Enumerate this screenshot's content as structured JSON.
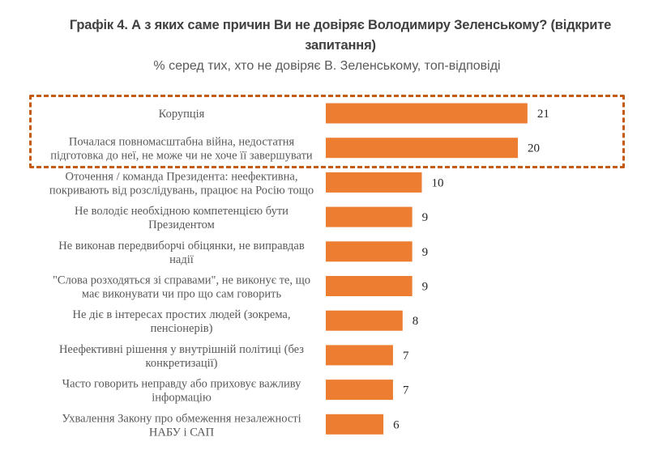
{
  "chart_data": {
    "type": "bar",
    "orientation": "horizontal",
    "title": "Графік 4. А з яких саме причин Ви не довіряє Володимиру Зеленському? (відкрите запитання)",
    "subtitle": "% серед тих, хто не довіряє В. Зеленському, топ-відповіді",
    "categories": [
      [
        "Корупція"
      ],
      [
        "Почалася повномасштабна війна, недостатня",
        "підготовка до неї, не може чи не хоче її завершувати"
      ],
      [
        "Оточення / команда Президента: неефективна,",
        "покривають від розслідувань, працює на Росію тощо"
      ],
      [
        "Не володіє необхідною компетенцією бути",
        "Президентом"
      ],
      [
        "Не виконав передвиборчі обіцянки, не виправдав",
        "надії"
      ],
      [
        "\"Слова розходяться зі справами\", не виконує те, що",
        "має виконувати чи про що сам говорить"
      ],
      [
        "Не діє в інтересах простих людей (зокрема,",
        "пенсіонерів)"
      ],
      [
        "Неефективні рішення у внутрішній політиці (без",
        "конкретизації)"
      ],
      [
        "Часто говорить неправду або приховує важливу",
        "інформацію"
      ],
      [
        "Ухвалення Закону про обмеження незалежності",
        "НАБУ і САП"
      ]
    ],
    "values": [
      21,
      20,
      10,
      9,
      9,
      9,
      8,
      7,
      7,
      6
    ],
    "highlighted": [
      0,
      1
    ],
    "bar_color": "#ed7d31",
    "highlight_color": "#c55a11",
    "grid": false
  }
}
